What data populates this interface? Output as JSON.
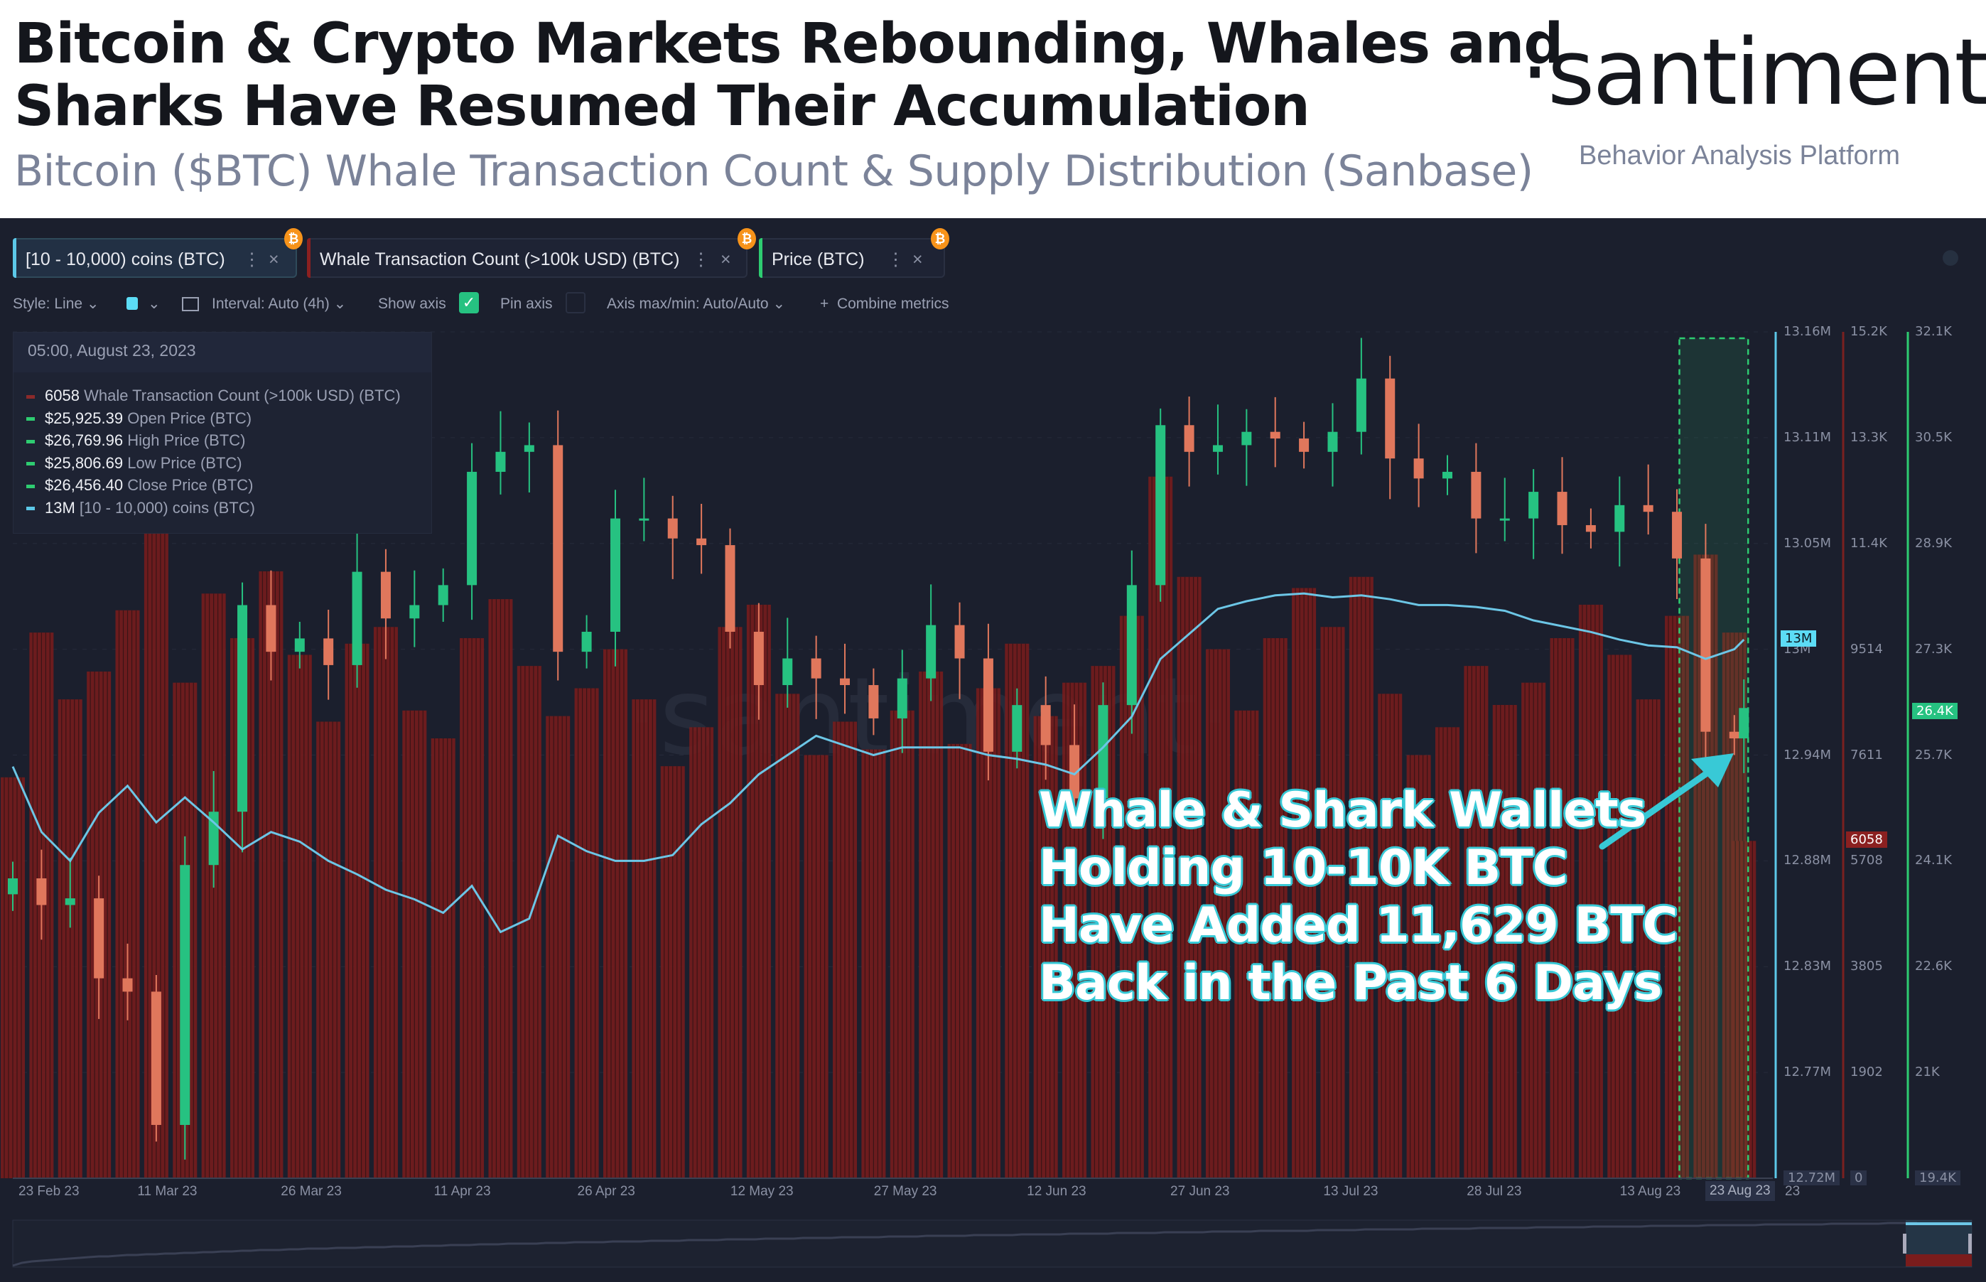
{
  "header": {
    "title_line1": "Bitcoin & Crypto Markets Rebounding, Whales and",
    "title_line2": "Sharks Have Resumed Their Accumulation",
    "subtitle": "Bitcoin ($BTC) Whale Transaction Count & Supply Distribution (Sanbase)",
    "logo": "·santiment·",
    "tagline": "Behavior Analysis Platform"
  },
  "tabs": [
    {
      "label": "[10 - 10,000) coins (BTC)",
      "color": "#5cc8e8",
      "icon": "bitcoin-icon"
    },
    {
      "label": "Whale Transaction Count (>100k USD) (BTC)",
      "color": "#8b2020",
      "icon": "bitcoin-icon"
    },
    {
      "label": "Price (BTC)",
      "color": "#2ecc71",
      "icon": "bitcoin-icon"
    }
  ],
  "toolbar": {
    "style": "Style: Line",
    "interval": "Interval: Auto (4h)",
    "show_axis": "Show axis",
    "show_axis_checked": true,
    "pin_axis": "Pin axis",
    "pin_axis_checked": false,
    "axis_minmax": "Axis max/min: Auto/Auto",
    "combine": "Combine metrics",
    "color_swatch": "#5cdcf5"
  },
  "legend": {
    "date": "05:00, August 23, 2023",
    "rows": [
      {
        "value": "6058",
        "label": "Whale Transaction Count (>100k USD) (BTC)",
        "color": "#8b2a2a"
      },
      {
        "value": "$25,925.39",
        "label": "Open Price (BTC)",
        "color": "#2ecc71"
      },
      {
        "value": "$26,769.96",
        "label": "High Price (BTC)",
        "color": "#2ecc71"
      },
      {
        "value": "$25,806.69",
        "label": "Low Price (BTC)",
        "color": "#2ecc71"
      },
      {
        "value": "$26,456.40",
        "label": "Close Price (BTC)",
        "color": "#2ecc71"
      },
      {
        "value": "13M",
        "label": "[10 - 10,000) coins (BTC)",
        "color": "#5cc8e8"
      }
    ]
  },
  "annotation": {
    "lines": [
      "Whale & Shark Wallets",
      "Holding 10-10K BTC",
      "Have Added 11,629 BTC",
      "Back in the Past 6 Days"
    ]
  },
  "chart_data": {
    "type": "bar+candlestick+line",
    "x_ticks": [
      {
        "label": "23 Feb 23",
        "date": "2023-02-23"
      },
      {
        "label": "11 Mar 23",
        "date": "2023-03-11"
      },
      {
        "label": "26 Mar 23",
        "date": "2023-03-26"
      },
      {
        "label": "11 Apr 23",
        "date": "2023-04-11"
      },
      {
        "label": "26 Apr 23",
        "date": "2023-04-26"
      },
      {
        "label": "12 May 23",
        "date": "2023-05-12"
      },
      {
        "label": "27 May 23",
        "date": "2023-05-27"
      },
      {
        "label": "12 Jun 23",
        "date": "2023-06-12"
      },
      {
        "label": "27 Jun 23",
        "date": "2023-06-27"
      },
      {
        "label": "13 Jul 23",
        "date": "2023-07-13"
      },
      {
        "label": "28 Jul 23",
        "date": "2023-07-28"
      },
      {
        "label": "13 Aug 23",
        "date": "2023-08-13"
      }
    ],
    "x_current_label": "23 Aug 23",
    "x_trailing_label": "23",
    "axes": {
      "supply": {
        "ticks": [
          "13.16M",
          "13.11M",
          "13.05M",
          "13M",
          "12.94M",
          "12.88M",
          "12.83M",
          "12.77M",
          "12.72M"
        ],
        "range": [
          12.72,
          13.16
        ],
        "current": "13M",
        "color": "#5cc8e8"
      },
      "whale": {
        "ticks": [
          "15.2K",
          "13.3K",
          "11.4K",
          "9514",
          "7611",
          "5708",
          "3805",
          "1902",
          "0"
        ],
        "range": [
          0,
          15200
        ],
        "current": "6058",
        "color": "#8b2020"
      },
      "price": {
        "ticks": [
          "32.1K",
          "30.5K",
          "28.9K",
          "27.3K",
          "25.7K",
          "24.1K",
          "22.6K",
          "21K",
          "19.4K"
        ],
        "range": [
          19400,
          32100
        ],
        "current": "26.4K",
        "color": "#2ecc71"
      }
    },
    "highlight_range": [
      "2023-08-17",
      "2023-08-23"
    ],
    "dates": [
      "2023-02-23",
      "2023-02-26",
      "2023-03-01",
      "2023-03-04",
      "2023-03-07",
      "2023-03-10",
      "2023-03-13",
      "2023-03-16",
      "2023-03-19",
      "2023-03-22",
      "2023-03-25",
      "2023-03-28",
      "2023-03-31",
      "2023-04-03",
      "2023-04-06",
      "2023-04-09",
      "2023-04-12",
      "2023-04-15",
      "2023-04-18",
      "2023-04-21",
      "2023-04-24",
      "2023-04-27",
      "2023-04-30",
      "2023-05-03",
      "2023-05-06",
      "2023-05-09",
      "2023-05-12",
      "2023-05-15",
      "2023-05-18",
      "2023-05-21",
      "2023-05-24",
      "2023-05-27",
      "2023-05-30",
      "2023-06-02",
      "2023-06-05",
      "2023-06-08",
      "2023-06-11",
      "2023-06-14",
      "2023-06-17",
      "2023-06-20",
      "2023-06-23",
      "2023-06-26",
      "2023-06-29",
      "2023-07-02",
      "2023-07-05",
      "2023-07-08",
      "2023-07-11",
      "2023-07-14",
      "2023-07-17",
      "2023-07-20",
      "2023-07-23",
      "2023-07-26",
      "2023-07-29",
      "2023-08-01",
      "2023-08-04",
      "2023-08-07",
      "2023-08-10",
      "2023-08-13",
      "2023-08-16",
      "2023-08-19",
      "2023-08-22",
      "2023-08-23"
    ],
    "price_close_usd": [
      23900,
      23500,
      23600,
      22400,
      22200,
      20200,
      24100,
      24900,
      28000,
      27300,
      27500,
      27100,
      28500,
      27800,
      28000,
      28300,
      30000,
      30300,
      30400,
      27300,
      27600,
      29300,
      29300,
      29000,
      28900,
      27600,
      26800,
      27200,
      26900,
      26800,
      26300,
      26900,
      27700,
      27200,
      25800,
      26500,
      25900,
      25100,
      26500,
      28300,
      30700,
      30300,
      30400,
      30600,
      30500,
      30300,
      30600,
      31400,
      30200,
      29900,
      30000,
      29300,
      29300,
      29700,
      29200,
      29100,
      29500,
      29400,
      28700,
      26100,
      26000,
      26456
    ],
    "whale_tx_count": [
      7200,
      9800,
      8600,
      9100,
      10200,
      11800,
      8900,
      10500,
      9700,
      10900,
      9400,
      8200,
      9600,
      9900,
      8400,
      7900,
      9700,
      10400,
      9200,
      8300,
      8800,
      9500,
      8600,
      7400,
      8100,
      9900,
      10300,
      8700,
      7600,
      8200,
      7700,
      8400,
      9100,
      7800,
      8800,
      9600,
      8300,
      8900,
      9200,
      10100,
      12600,
      10800,
      9500,
      8400,
      9700,
      10600,
      9900,
      10800,
      8700,
      7600,
      8100,
      9200,
      8500,
      8900,
      9700,
      10300,
      9400,
      8600,
      10100,
      11200,
      9800,
      6058
    ],
    "supply_10_10k_coins_millions": [
      12.934,
      12.9,
      12.885,
      12.91,
      12.924,
      12.905,
      12.918,
      12.905,
      12.891,
      12.9,
      12.895,
      12.885,
      12.878,
      12.87,
      12.865,
      12.858,
      12.872,
      12.848,
      12.855,
      12.898,
      12.89,
      12.885,
      12.885,
      12.888,
      12.904,
      12.915,
      12.93,
      12.94,
      12.95,
      12.945,
      12.94,
      12.944,
      12.944,
      12.944,
      12.94,
      12.938,
      12.935,
      12.93,
      12.944,
      12.96,
      12.99,
      13.003,
      13.016,
      13.02,
      13.023,
      13.024,
      13.022,
      13.023,
      13.021,
      13.018,
      13.018,
      13.017,
      13.015,
      13.01,
      13.007,
      13.004,
      13.0,
      12.997,
      12.996,
      12.99,
      12.995,
      13.0
    ],
    "colors": {
      "bars": "#7a1c1c",
      "candle_up": "#26c281",
      "candle_down": "#e0775c",
      "supply_line": "#6cc6e6",
      "highlight": "#2ecc71"
    }
  }
}
